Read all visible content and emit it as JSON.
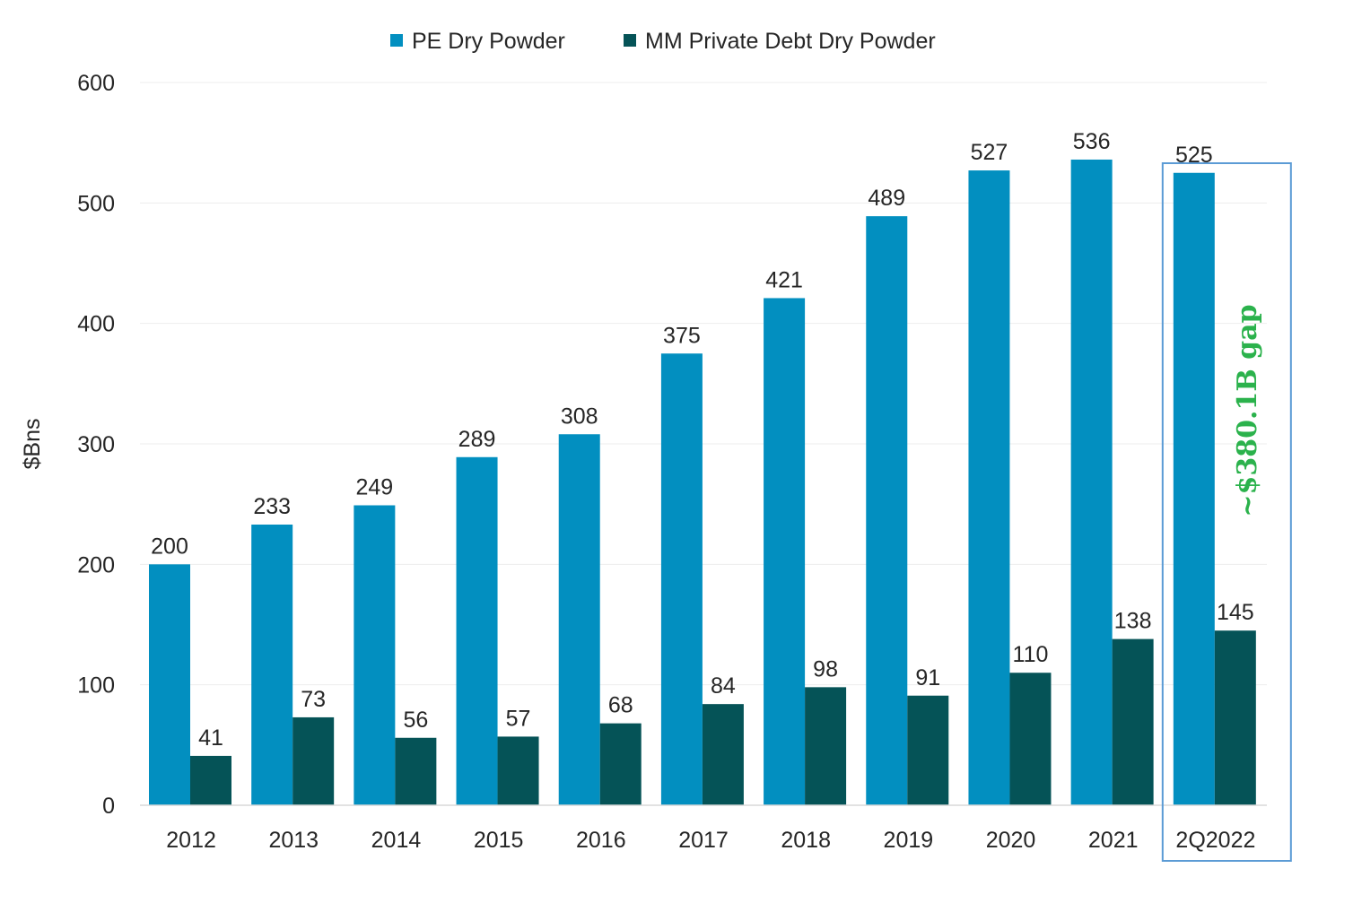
{
  "chart_data": {
    "type": "bar",
    "categories": [
      "2012",
      "2013",
      "2014",
      "2015",
      "2016",
      "2017",
      "2018",
      "2019",
      "2020",
      "2021",
      "2Q2022"
    ],
    "series": [
      {
        "name": "PE Dry Powder",
        "color": "#028FC0",
        "values": [
          200,
          233,
          249,
          289,
          308,
          375,
          421,
          489,
          527,
          536,
          525
        ]
      },
      {
        "name": "MM Private Debt Dry Powder",
        "color": "#055357",
        "values": [
          41,
          73,
          56,
          57,
          68,
          84,
          98,
          91,
          110,
          138,
          145
        ]
      }
    ],
    "ylabel": "$Bns",
    "ylim": [
      0,
      600
    ],
    "yticks": [
      0,
      100,
      200,
      300,
      400,
      500,
      600
    ],
    "grid": true,
    "legend_position": "top-center",
    "annotation": {
      "text": "~$380.1B gap",
      "color": "#2BB24C",
      "highlight_category": "2Q2022",
      "box_color": "#5B9BD5"
    }
  }
}
